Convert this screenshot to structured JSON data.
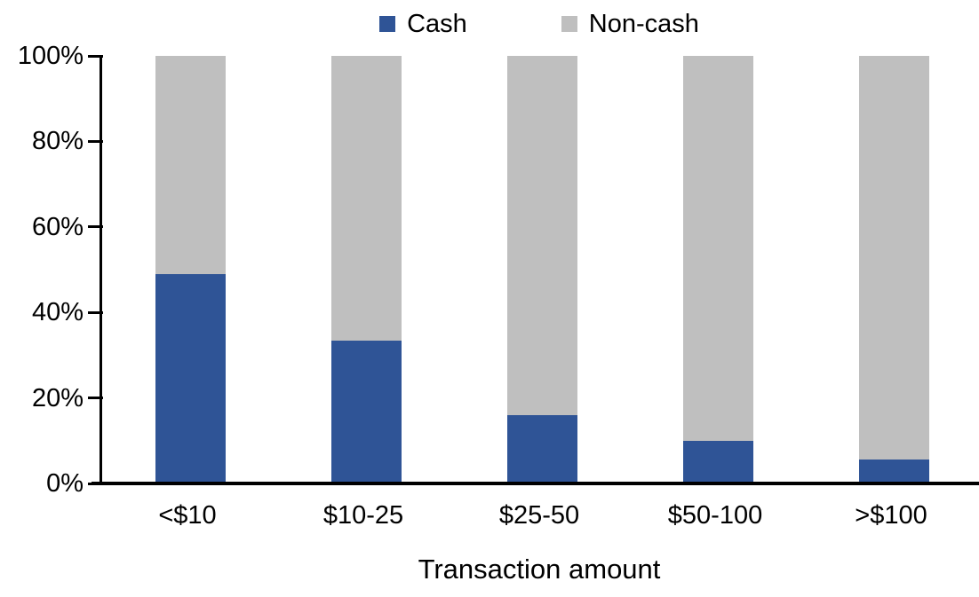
{
  "figure": {
    "background": "#ffffff",
    "text_color": "#000000",
    "axis_color": "#000000"
  },
  "chart_data": {
    "type": "bar",
    "stacked": true,
    "title": "",
    "xlabel": "Transaction amount",
    "ylabel": "",
    "categories": [
      "<$10",
      "$10-25",
      "$25-50",
      "$50-100",
      ">$100"
    ],
    "series": [
      {
        "name": "Cash",
        "color": "#2F5496",
        "values": [
          49,
          33.5,
          16,
          10,
          5.5
        ]
      },
      {
        "name": "Non-cash",
        "color": "#BFBFBF",
        "values": [
          51,
          66.5,
          84,
          90,
          94.5
        ]
      }
    ],
    "ylim": [
      0,
      100
    ],
    "ytick_interval": 20,
    "ytick_labels": [
      "0%",
      "20%",
      "40%",
      "60%",
      "80%",
      "100%"
    ],
    "legend_position": "top-center",
    "grid": false
  }
}
